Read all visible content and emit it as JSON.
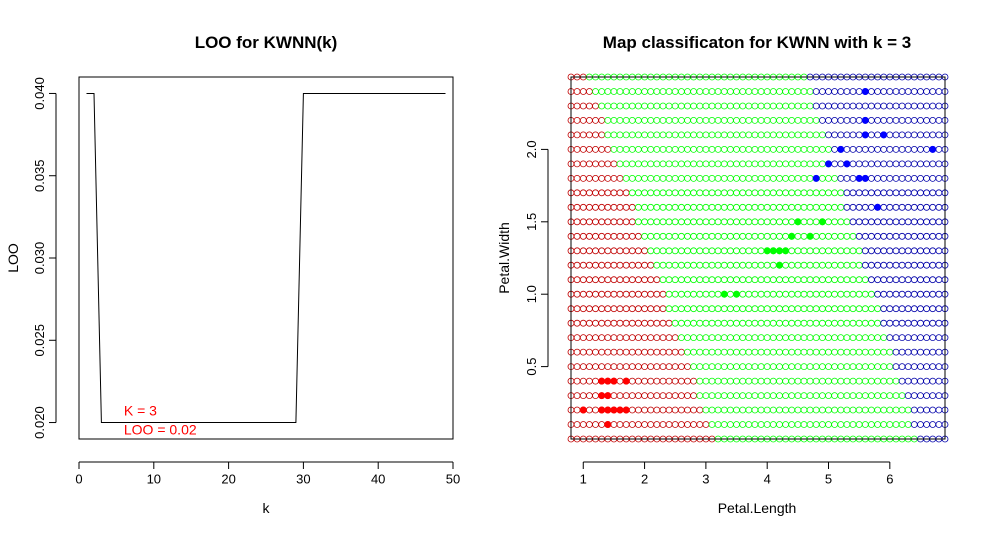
{
  "chart_data": [
    {
      "type": "line",
      "title": "LOO for KWNN(k)",
      "xlabel": "k",
      "ylabel": "LOO",
      "xlim": [
        0,
        50
      ],
      "ylim": [
        0.019,
        0.041
      ],
      "xticks": [
        "0",
        "10",
        "20",
        "30",
        "40",
        "50"
      ],
      "yticks": [
        "0.020",
        "0.025",
        "0.030",
        "0.035",
        "0.040"
      ],
      "series": [
        {
          "x": [
            1,
            2,
            3,
            28,
            29,
            30,
            49
          ],
          "y": [
            0.04,
            0.04,
            0.02,
            0.02,
            0.02,
            0.04,
            0.04
          ]
        }
      ],
      "annotation": {
        "lines": [
          "K = 3",
          "LOO = 0.02"
        ],
        "x": 3,
        "y": 0.02,
        "color": "#ff0000"
      }
    },
    {
      "type": "scatter",
      "title": "Map classificaton for KWNN with k =  3",
      "xlabel": "Petal.Length",
      "ylabel": "Petal.Width",
      "xlim": [
        0.8,
        6.9
      ],
      "ylim": [
        0.0,
        2.5
      ],
      "xticks": [
        "1",
        "2",
        "3",
        "4",
        "5",
        "6"
      ],
      "yticks": [
        "0.5",
        "1.0",
        "1.5",
        "2.0"
      ],
      "grid": "classification map of open circles, step 0.1",
      "region_boundaries": {
        "red_green": [
          [
            1.05,
            2.5
          ],
          [
            3.15,
            0.0
          ]
        ],
        "green_blue": [
          [
            4.65,
            2.5
          ],
          [
            6.45,
            0.0
          ]
        ]
      },
      "classes": [
        {
          "color": "#ff0000",
          "points": [
            [
              1.0,
              0.2
            ],
            [
              1.3,
              0.4
            ],
            [
              1.4,
              0.4
            ],
            [
              1.5,
              0.4
            ],
            [
              1.7,
              0.4
            ],
            [
              1.3,
              0.3
            ],
            [
              1.4,
              0.3
            ],
            [
              1.3,
              0.2
            ],
            [
              1.4,
              0.2
            ],
            [
              1.5,
              0.2
            ],
            [
              1.6,
              0.2
            ],
            [
              1.7,
              0.2
            ],
            [
              1.4,
              0.1
            ]
          ]
        },
        {
          "color": "#00ff00",
          "points": [
            [
              3.3,
              1.0
            ],
            [
              3.5,
              1.0
            ],
            [
              4.0,
              1.3
            ],
            [
              4.1,
              1.3
            ],
            [
              4.2,
              1.3
            ],
            [
              4.3,
              1.3
            ],
            [
              4.2,
              1.2
            ],
            [
              4.4,
              1.4
            ],
            [
              4.5,
              1.5
            ],
            [
              4.7,
              1.4
            ],
            [
              4.9,
              1.5
            ]
          ]
        },
        {
          "color": "#0000ff",
          "points": [
            [
              5.6,
              2.4
            ],
            [
              5.6,
              2.2
            ],
            [
              5.6,
              2.1
            ],
            [
              5.9,
              2.1
            ],
            [
              5.2,
              2.0
            ],
            [
              6.7,
              2.0
            ],
            [
              5.0,
              1.9
            ],
            [
              5.3,
              1.9
            ],
            [
              4.8,
              1.8
            ],
            [
              5.5,
              1.8
            ],
            [
              5.6,
              1.8
            ],
            [
              5.8,
              1.6
            ]
          ]
        }
      ]
    }
  ]
}
